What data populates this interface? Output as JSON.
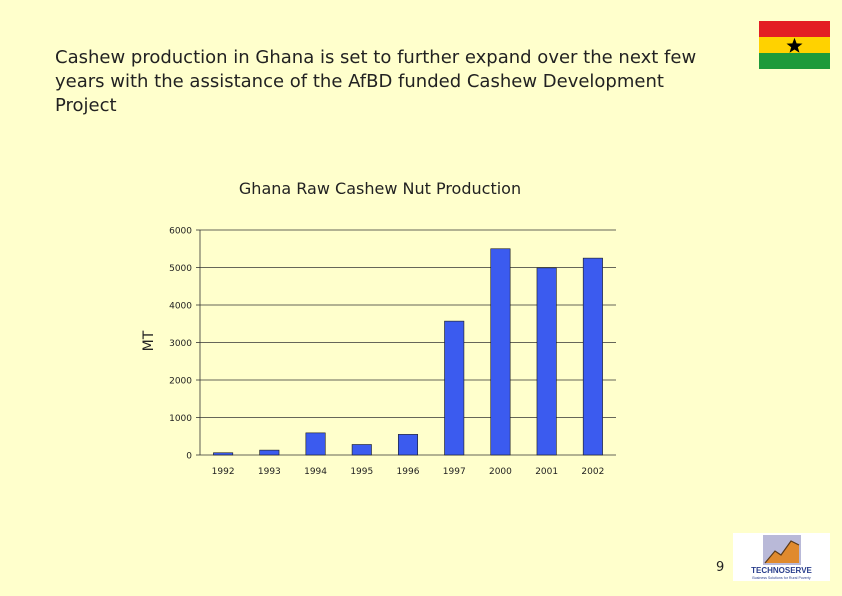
{
  "slide": {
    "title": "Cashew production in Ghana is set to further expand over the next few\nyears with the assistance of the AfBD funded Cashew Development\nProject",
    "page_number": "9",
    "logo_text": "TECHNOSERVE",
    "logo_tagline": "Business Solutions for Rural Poverty"
  },
  "colors": {
    "background": "#FFFFCC",
    "bar": "#3B5BEF",
    "flag_red": "#E31E24",
    "flag_yellow": "#FFD200",
    "flag_green": "#1E9A3A"
  },
  "chart_data": {
    "type": "bar",
    "title": "Ghana Raw Cashew Nut Production",
    "xlabel": "",
    "ylabel": "MT",
    "categories": [
      "1992",
      "1993",
      "1994",
      "1995",
      "1996",
      "1997",
      "2000",
      "2001",
      "2002"
    ],
    "values": [
      60,
      130,
      590,
      280,
      550,
      3570,
      5500,
      4990,
      5250
    ],
    "ylim": [
      0,
      6000
    ],
    "yticks": [
      0,
      1000,
      2000,
      3000,
      4000,
      5000,
      6000
    ],
    "grid": true,
    "legend": false
  }
}
